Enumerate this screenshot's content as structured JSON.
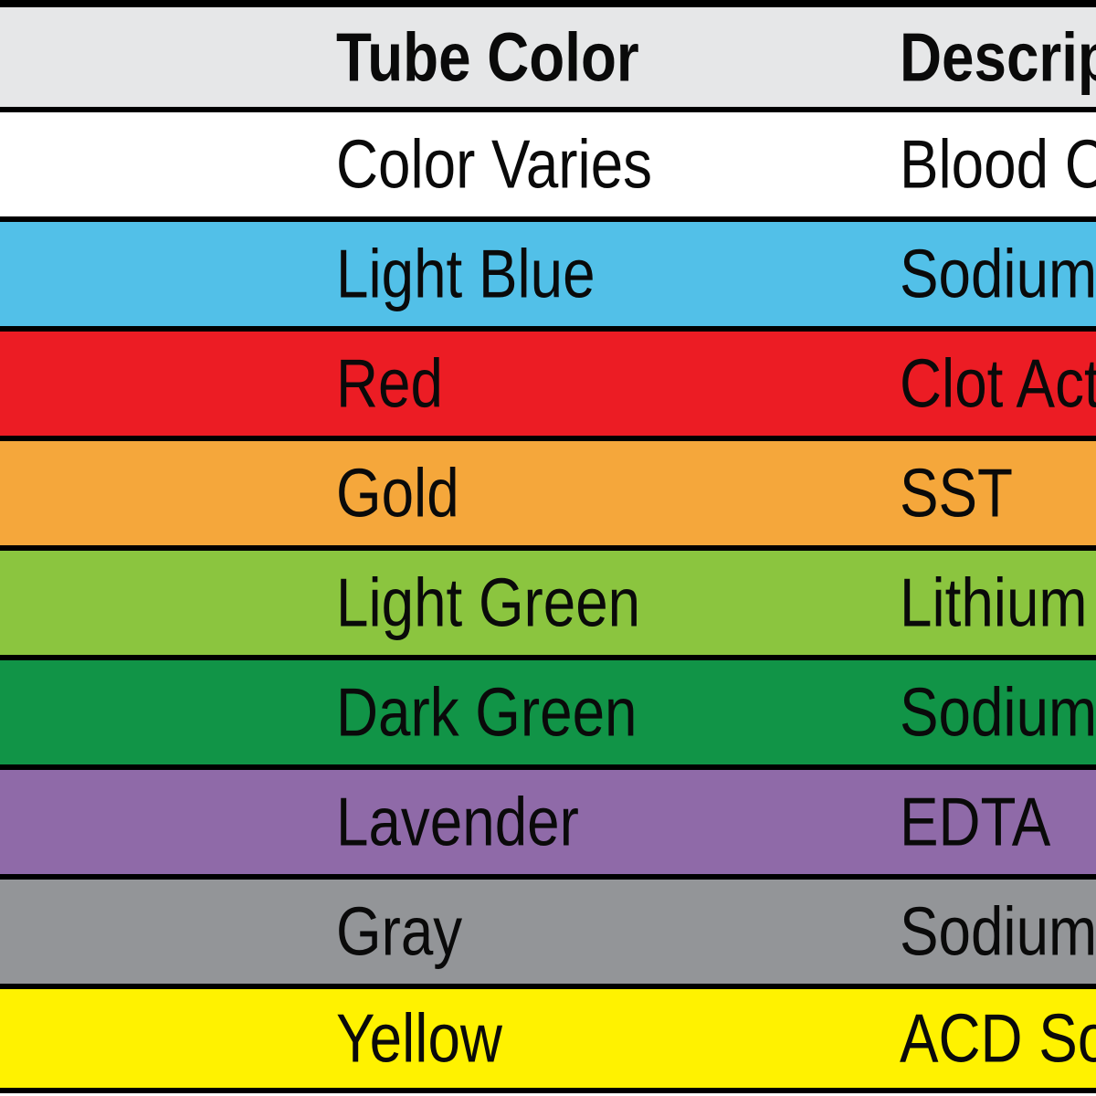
{
  "chart_data": {
    "type": "table",
    "columns": [
      "Tube Color",
      "Description"
    ],
    "rows": [
      [
        "Color Varies",
        "Blood Cultures"
      ],
      [
        "Light Blue",
        "Sodium Citrate"
      ],
      [
        "Red",
        "Clot Activator"
      ],
      [
        "Gold",
        "SST"
      ],
      [
        "Light Green",
        "Lithium Heparin"
      ],
      [
        "Dark Green",
        "Sodium Heparin"
      ],
      [
        "Lavender",
        "EDTA"
      ],
      [
        "Gray",
        "Sodium Fluoride"
      ],
      [
        "Yellow",
        "ACD Solution"
      ]
    ],
    "row_colors": [
      "#FFFFFF",
      "#52C0E8",
      "#EC1C24",
      "#F5A73B",
      "#8BC53F",
      "#119447",
      "#8F6AA8",
      "#939598",
      "#FFF200"
    ],
    "header_bg": "#E6E7E8",
    "border_color": "#000000",
    "text_color": "#0A0A0A",
    "legend_position": "none",
    "grid": "horizontal-row-separators"
  }
}
